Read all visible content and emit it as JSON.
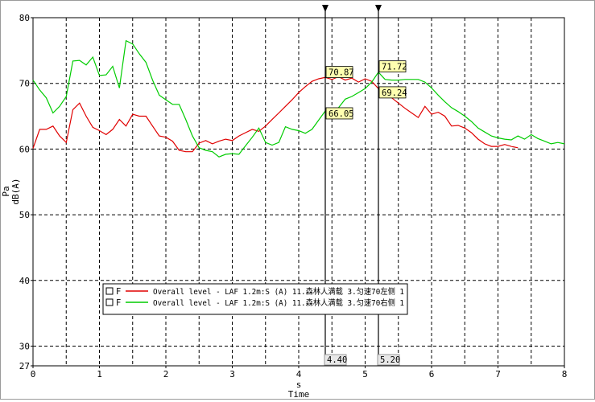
{
  "chart_data": {
    "type": "line",
    "xlabel_unit": "s",
    "xlabel": "Time",
    "ylabel_unit": "Pa",
    "ylabel": "dB(A)",
    "xlim": [
      0,
      8
    ],
    "ylim": [
      27,
      80
    ],
    "x_ticks": [
      0,
      1,
      2,
      3,
      4,
      5,
      6,
      7,
      8
    ],
    "y_ticks": [
      27,
      30,
      40,
      50,
      60,
      70,
      80
    ],
    "grid": true,
    "legend_position": "lower-center",
    "series": [
      {
        "name": "Overall level - LAF 1.2m:S (A) 11.森林人满载 3.匀速70左侧 1",
        "legend_prefix": "F",
        "color": "#e00000",
        "x": [
          0,
          0.1,
          0.2,
          0.3,
          0.4,
          0.5,
          0.6,
          0.7,
          0.8,
          0.9,
          1.0,
          1.1,
          1.2,
          1.3,
          1.4,
          1.5,
          1.6,
          1.7,
          1.8,
          1.9,
          2.0,
          2.1,
          2.2,
          2.3,
          2.4,
          2.5,
          2.6,
          2.7,
          2.8,
          2.9,
          3.0,
          3.1,
          3.2,
          3.3,
          3.4,
          3.5,
          3.6,
          3.7,
          3.8,
          3.9,
          4.0,
          4.1,
          4.2,
          4.3,
          4.4,
          4.5,
          4.6,
          4.7,
          4.8,
          4.9,
          5.0,
          5.1,
          5.2,
          5.3,
          5.4,
          5.5,
          5.6,
          5.7,
          5.8,
          5.9,
          6.0,
          6.1,
          6.2,
          6.3,
          6.4,
          6.5,
          6.6,
          6.7,
          6.8,
          6.9,
          7.0,
          7.1,
          7.2,
          7.3
        ],
        "values": [
          60.1,
          63,
          63,
          63.5,
          62,
          61,
          66,
          67,
          65,
          63.3,
          62.8,
          62.2,
          63,
          64.5,
          63.5,
          65.3,
          65,
          65,
          63.5,
          62,
          61.8,
          61.2,
          59.8,
          59.6,
          59.6,
          60.9,
          61.3,
          60.8,
          61.2,
          61.5,
          61.3,
          62,
          62.5,
          63,
          62.7,
          63.5,
          64.5,
          65.5,
          66.5,
          67.5,
          68.6,
          69.5,
          70.3,
          70.7,
          70.9,
          70.6,
          71,
          70.5,
          70.8,
          70.2,
          70.7,
          70.3,
          69.2,
          68.5,
          67.8,
          67,
          66.2,
          65.5,
          64.8,
          66.5,
          65.3,
          65.6,
          65,
          63.5,
          63.6,
          63.2,
          62.5,
          61.5,
          60.8,
          60.4,
          60.4,
          60.7,
          60.4,
          60.2
        ]
      },
      {
        "name": "Overall level - LAF 1.2m:S (A) 11.森林人满载 3.匀速70右侧 1",
        "legend_prefix": "F",
        "color": "#00cc00",
        "x": [
          0,
          0.1,
          0.2,
          0.3,
          0.4,
          0.5,
          0.6,
          0.7,
          0.8,
          0.9,
          1.0,
          1.1,
          1.2,
          1.3,
          1.4,
          1.5,
          1.6,
          1.7,
          1.8,
          1.9,
          2.0,
          2.1,
          2.2,
          2.3,
          2.4,
          2.5,
          2.6,
          2.7,
          2.8,
          2.9,
          3.0,
          3.1,
          3.2,
          3.3,
          3.4,
          3.5,
          3.6,
          3.7,
          3.8,
          3.9,
          4.0,
          4.1,
          4.2,
          4.3,
          4.4,
          4.5,
          4.6,
          4.7,
          4.8,
          4.9,
          5.0,
          5.1,
          5.2,
          5.3,
          5.4,
          5.5,
          5.6,
          5.7,
          5.8,
          5.9,
          6.0,
          6.1,
          6.2,
          6.3,
          6.4,
          6.5,
          6.6,
          6.7,
          6.8,
          6.9,
          7.0,
          7.1,
          7.2,
          7.3,
          7.4,
          7.5,
          7.6,
          7.7,
          7.8,
          7.9,
          8.0
        ],
        "values": [
          70.5,
          69,
          67.8,
          65.5,
          66.5,
          68,
          73.4,
          73.5,
          72.8,
          74,
          71.2,
          71.3,
          72.6,
          69.3,
          76.5,
          76,
          74.5,
          73.2,
          70.5,
          68.2,
          67.5,
          66.8,
          66.8,
          64.5,
          62,
          60.2,
          59.8,
          59.6,
          58.8,
          59.2,
          59.3,
          59.2,
          60.5,
          61.8,
          63.2,
          61,
          60.6,
          61,
          63.4,
          63,
          62.8,
          62.4,
          63,
          64.4,
          65.8,
          65.6,
          66.3,
          67.6,
          68,
          68.6,
          69.2,
          70.2,
          71.7,
          70.6,
          70.5,
          70.5,
          70.6,
          70.6,
          70.6,
          70.2,
          69.3,
          68.2,
          67.2,
          66.3,
          65.7,
          65,
          64.2,
          63.2,
          62.6,
          62,
          61.7,
          61.5,
          61.4,
          62,
          61.5,
          62.2,
          61.6,
          61.2,
          60.8,
          61,
          60.8
        ]
      }
    ],
    "cursors": [
      {
        "x_label": "4.40",
        "readouts": [
          {
            "label": "70.87",
            "value": 70.87
          },
          {
            "label": "66.05",
            "value": 66.05
          }
        ]
      },
      {
        "x_label": "5.20",
        "readouts": [
          {
            "label": "71.72",
            "value": 71.72
          },
          {
            "label": "69.24",
            "value": 69.24
          }
        ]
      }
    ],
    "cursor_x": [
      4.4,
      5.2
    ]
  }
}
